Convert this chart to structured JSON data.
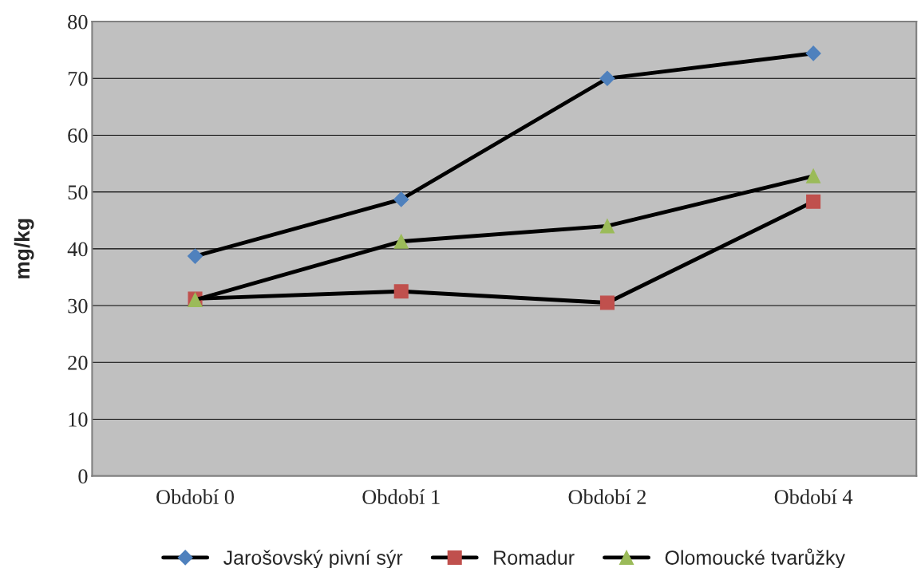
{
  "chart_data": {
    "type": "line",
    "ylabel": "mg/kg",
    "categories": [
      "Období 0",
      "Období 1",
      "Období 2",
      "Období 4"
    ],
    "series": [
      {
        "name": "Jarošovský pivní sýr",
        "color": "#4f81bd",
        "marker": "diamond",
        "values": [
          38.7,
          48.7,
          70.0,
          74.4
        ]
      },
      {
        "name": "Romadur",
        "color": "#c0504d",
        "marker": "square",
        "values": [
          31.2,
          32.5,
          30.5,
          48.3
        ]
      },
      {
        "name": "Olomoucké tvarůžky",
        "color": "#9bbb59",
        "marker": "triangle",
        "values": [
          31.0,
          41.3,
          44.0,
          52.8
        ]
      }
    ],
    "ylim": [
      0,
      80
    ],
    "yticks": [
      0,
      10,
      20,
      30,
      40,
      50,
      60,
      70,
      80
    ],
    "grid": "y",
    "legend": "bottom",
    "line_style": "solid"
  }
}
